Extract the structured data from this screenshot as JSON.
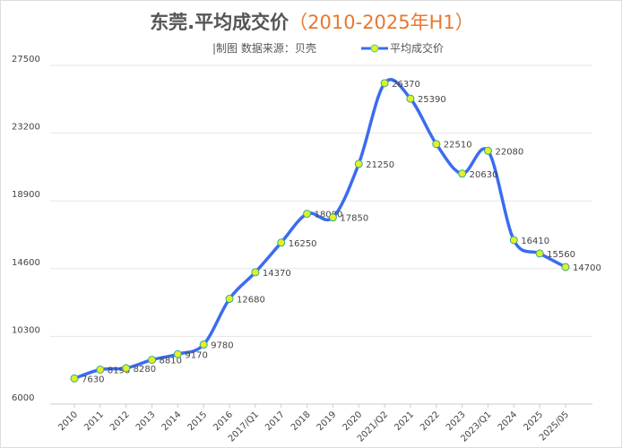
{
  "chart_data": {
    "type": "line",
    "title": "东莞.平均成交价",
    "title_highlight": "2010-2025年H1",
    "subtitle": "|制图   数据来源：贝壳",
    "legend": {
      "label": "平均成交价",
      "placement": "top-right"
    },
    "categories": [
      "2010",
      "2011",
      "2012",
      "2013",
      "2014",
      "2015",
      "2016",
      "2017/Q1",
      "2017",
      "2018",
      "2019",
      "2020",
      "2021/Q2",
      "2021",
      "2022",
      "2023",
      "2023/Q1",
      "2024",
      "2025",
      "2025/05"
    ],
    "series": [
      {
        "name": "平均成交价",
        "values": [
          7630,
          8190,
          8280,
          8810,
          9170,
          9780,
          12680,
          14370,
          16250,
          18080,
          17850,
          21250,
          26370,
          25390,
          22510,
          20630,
          22080,
          16410,
          15560,
          14700
        ],
        "color": "#3b6cf0",
        "marker_color": "#e6f01e"
      }
    ],
    "yticks": [
      "6000",
      "10300",
      "14600",
      "18900",
      "23200",
      "27500"
    ],
    "ylim": [
      6000,
      27500
    ],
    "grid": true
  }
}
